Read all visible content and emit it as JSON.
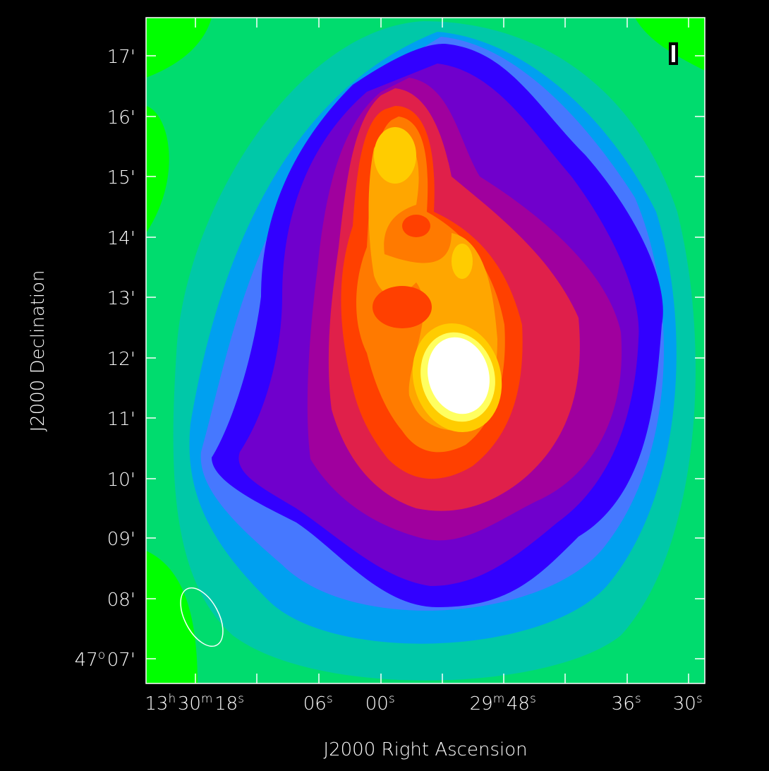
{
  "axes": {
    "x_label": "J2000 Right Ascension",
    "y_label": "J2000 Declination",
    "x_ticks": [
      [
        {
          "text": "13",
          "sup": "h"
        },
        {
          "text": "30",
          "sup": "m"
        },
        {
          "text": "18",
          "sup": "s"
        }
      ],
      [
        {
          "text": "06",
          "sup": "s"
        }
      ],
      [
        {
          "text": "00",
          "sup": "s"
        }
      ],
      [
        {
          "text": "29",
          "sup": "m"
        },
        {
          "text": "48",
          "sup": "s"
        }
      ],
      [
        {
          "text": "36",
          "sup": "s"
        }
      ],
      [
        {
          "text": "30",
          "sup": "s"
        }
      ]
    ],
    "y_ticks": [
      [
        {
          "text": "47",
          "sup": "o"
        },
        {
          "text": "07'"
        }
      ],
      [
        {
          "text": "08'"
        }
      ],
      [
        {
          "text": "09'"
        }
      ],
      [
        {
          "text": "10'"
        }
      ],
      [
        {
          "text": "11'"
        }
      ],
      [
        {
          "text": "12'"
        }
      ],
      [
        {
          "text": "13'"
        }
      ],
      [
        {
          "text": "14'"
        }
      ],
      [
        {
          "text": "15'"
        }
      ],
      [
        {
          "text": "16'"
        }
      ],
      [
        {
          "text": "17'"
        }
      ]
    ]
  }
}
